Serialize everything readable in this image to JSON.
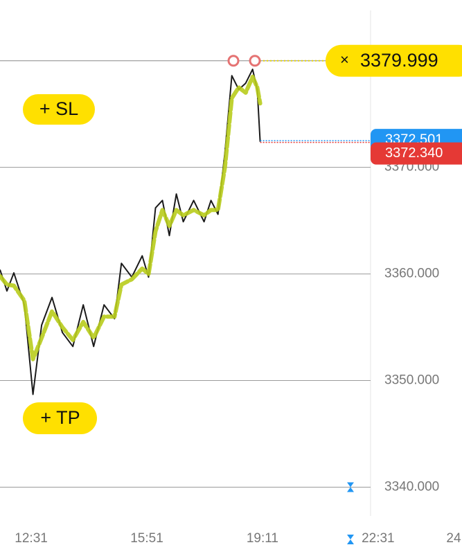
{
  "chart_data": {
    "type": "line",
    "x": [
      697,
      709,
      721,
      739,
      754,
      769,
      787,
      805,
      823,
      841,
      859,
      877,
      895,
      907,
      925,
      943,
      954,
      966,
      978,
      990,
      1002,
      1014,
      1032,
      1050,
      1062,
      1074,
      1086,
      1098,
      1110,
      1122,
      1134,
      1142,
      1147
    ],
    "series": [
      {
        "color": "#1a1a1a",
        "values": [
          3360.4,
          3358.4,
          3360.1,
          3357.1,
          3348.7,
          3355.2,
          3357.8,
          3354.5,
          3353.2,
          3357.1,
          3353.2,
          3357.1,
          3355.8,
          3361.0,
          3359.7,
          3361.7,
          3359.7,
          3366.2,
          3366.9,
          3363.6,
          3367.5,
          3364.9,
          3366.9,
          3364.9,
          3366.9,
          3365.6,
          3371.4,
          3378.6,
          3377.3,
          3377.9,
          3379.2,
          3377.3,
          3372.4
        ]
      },
      {
        "color": "#b8cc1c",
        "values": [
          3359.8,
          3359.0,
          3358.9,
          3357.5,
          3352.0,
          3354.0,
          3356.5,
          3355.0,
          3353.8,
          3355.5,
          3354.0,
          3356.0,
          3356.0,
          3359.0,
          3359.5,
          3360.5,
          3360.0,
          3364.0,
          3366.0,
          3364.5,
          3366.0,
          3365.5,
          3366.0,
          3365.5,
          3366.0,
          3366.0,
          3370.0,
          3376.5,
          3377.5,
          3377.0,
          3378.5,
          3377.5,
          3376.0
        ]
      }
    ],
    "xlim": [
      697,
      1338
    ],
    "xticks": [
      {
        "value": 751,
        "label": "12:31"
      },
      {
        "value": 951,
        "label": "15:51"
      },
      {
        "value": 1151,
        "label": "19:11"
      },
      {
        "value": 1351,
        "label": "22:31"
      },
      {
        "value": 1551,
        "label": "24"
      }
    ],
    "ylim": [
      3337.3,
      3385.7
    ],
    "yticks": [
      {
        "value": 3340,
        "label": "3340.000"
      },
      {
        "value": 3350,
        "label": "3350.000"
      },
      {
        "value": 3360,
        "label": "3360.000"
      },
      {
        "value": 3370,
        "label": "3370.000"
      }
    ],
    "grid": true,
    "pending_order": 3379.999,
    "ask": 3372.501,
    "bid": {
      "value": 3372.34,
      "label": "3372.340"
    },
    "sl_button": "+ SL",
    "tp_button": "+ TP"
  }
}
